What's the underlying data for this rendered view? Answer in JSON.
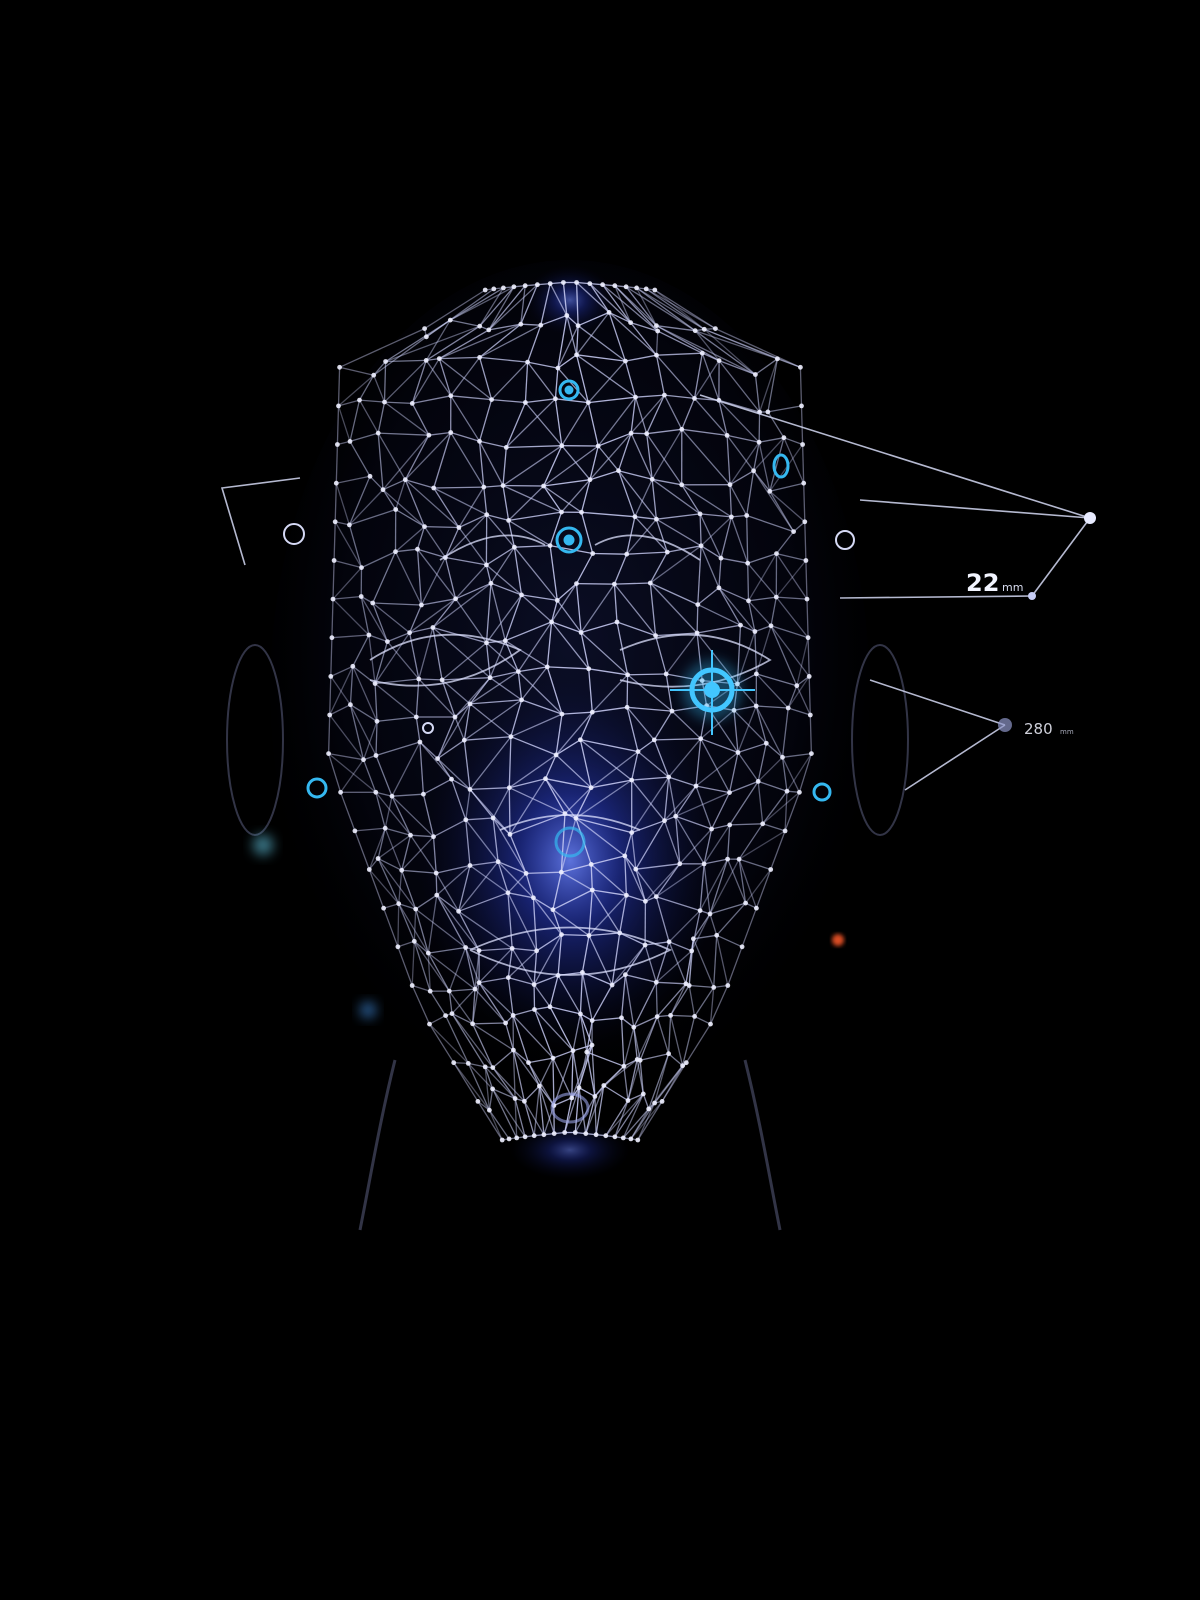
{
  "measurements": [
    {
      "value": "22",
      "unit": "mm"
    },
    {
      "value": "280",
      "unit": "mm"
    }
  ],
  "colors": {
    "background": "#000000",
    "mesh": "#c9cdf5",
    "glow": "#3a5cff",
    "marker": "#35b8f0",
    "text": "#f2f4ff"
  }
}
